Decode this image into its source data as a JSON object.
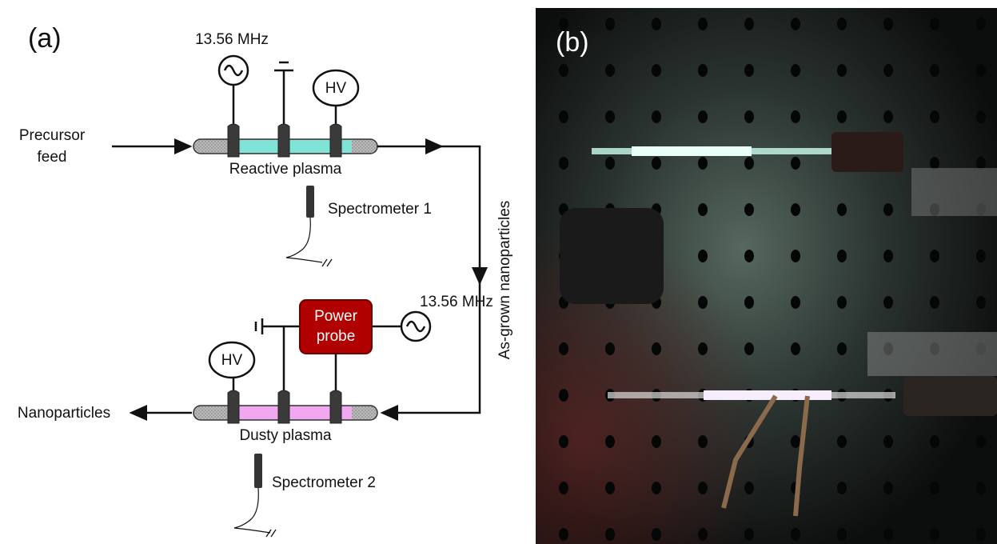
{
  "panel_a": {
    "label": "(a)",
    "reactor_1": {
      "source": "13.56 MHz",
      "hv": "HV",
      "inlet": [
        "Precursor",
        "feed"
      ],
      "name": "Reactive plasma",
      "spectrometer": "Spectrometer 1"
    },
    "transfer": "As-grown nanoparticles",
    "reactor_2": {
      "source": "13.56 MHz",
      "probe": [
        "Power",
        "probe"
      ],
      "hv": "HV",
      "outlet": "Nanoparticles",
      "name": "Dusty plasma",
      "spectrometer": "Spectrometer 2"
    }
  },
  "panel_b": {
    "label": "(b)"
  }
}
